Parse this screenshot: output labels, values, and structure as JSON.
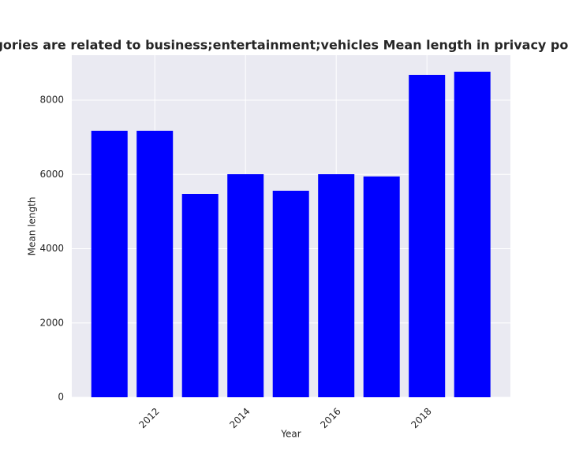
{
  "chart_data": {
    "type": "bar",
    "title": "en categories are related to business;entertainment;vehicles Mean length in privacy policies by",
    "x_label": "Year",
    "y_label": "Mean length",
    "x": [
      2011,
      2012,
      2013,
      2014,
      2015,
      2016,
      2017,
      2018,
      2019
    ],
    "values": [
      7175,
      7175,
      5475,
      6005,
      5560,
      6005,
      5945,
      8680,
      8765
    ],
    "color": "#0000ff",
    "xlim": [
      2010.17,
      2019.84
    ],
    "xticks": [
      2012,
      2014,
      2016,
      2018
    ],
    "ylim": [
      0,
      9210
    ],
    "yticks": [
      0,
      2000,
      4000,
      6000,
      8000
    ],
    "grid": true
  }
}
